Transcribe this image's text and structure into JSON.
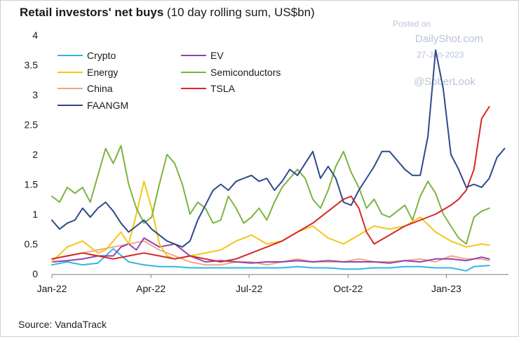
{
  "title_bold": "Retail investors' net buys",
  "title_rest": " (10 day rolling sum, US$bn)",
  "source": "Source: VandaTrack",
  "watermark": {
    "line1": "Posted on",
    "line2": "DailyShot.com",
    "line3": "27-Jan-2023",
    "line4": "@SoberLook"
  },
  "chart_data": {
    "type": "line",
    "title": "Retail investors' net buys (10 day rolling sum, US$bn)",
    "xlabel": "",
    "ylabel": "",
    "ylim": [
      0,
      4
    ],
    "yticks": [
      "0",
      "0.5",
      "1",
      "1.5",
      "2",
      "2.5",
      "3",
      "3.5",
      "4"
    ],
    "x_tick_labels": [
      "Jan-22",
      "Apr-22",
      "Jul-22",
      "Oct-22",
      "Jan-23"
    ],
    "x_unit": "weeks since Jan-22 (approx.)",
    "grid": false,
    "legend_position": "top-left",
    "series": [
      {
        "name": "Crypto",
        "color": "#33b5e5",
        "points": [
          [
            0,
            0.15
          ],
          [
            2,
            0.2
          ],
          [
            4,
            0.15
          ],
          [
            6,
            0.18
          ],
          [
            8,
            0.42
          ],
          [
            10,
            0.2
          ],
          [
            12,
            0.15
          ],
          [
            14,
            0.12
          ],
          [
            16,
            0.12
          ],
          [
            18,
            0.1
          ],
          [
            20,
            0.1
          ],
          [
            22,
            0.1
          ],
          [
            24,
            0.1
          ],
          [
            26,
            0.1
          ],
          [
            28,
            0.1
          ],
          [
            30,
            0.1
          ],
          [
            32,
            0.12
          ],
          [
            34,
            0.1
          ],
          [
            36,
            0.1
          ],
          [
            38,
            0.08
          ],
          [
            40,
            0.08
          ],
          [
            42,
            0.1
          ],
          [
            44,
            0.1
          ],
          [
            46,
            0.12
          ],
          [
            48,
            0.12
          ],
          [
            50,
            0.1
          ],
          [
            52,
            0.1
          ],
          [
            54,
            0.05
          ],
          [
            55,
            0.12
          ],
          [
            57,
            0.14
          ]
        ]
      },
      {
        "name": "EV",
        "color": "#8e44ad",
        "points": [
          [
            0,
            0.2
          ],
          [
            2,
            0.22
          ],
          [
            4,
            0.25
          ],
          [
            6,
            0.3
          ],
          [
            8,
            0.3
          ],
          [
            9,
            0.45
          ],
          [
            10,
            0.5
          ],
          [
            11,
            0.4
          ],
          [
            12,
            0.6
          ],
          [
            14,
            0.45
          ],
          [
            16,
            0.5
          ],
          [
            18,
            0.3
          ],
          [
            20,
            0.2
          ],
          [
            22,
            0.22
          ],
          [
            24,
            0.2
          ],
          [
            26,
            0.18
          ],
          [
            28,
            0.2
          ],
          [
            30,
            0.2
          ],
          [
            32,
            0.22
          ],
          [
            34,
            0.2
          ],
          [
            36,
            0.22
          ],
          [
            38,
            0.2
          ],
          [
            40,
            0.2
          ],
          [
            42,
            0.2
          ],
          [
            44,
            0.18
          ],
          [
            46,
            0.22
          ],
          [
            48,
            0.2
          ],
          [
            50,
            0.25
          ],
          [
            52,
            0.25
          ],
          [
            54,
            0.22
          ],
          [
            56,
            0.28
          ],
          [
            57,
            0.25
          ]
        ]
      },
      {
        "name": "Energy",
        "color": "#f5c518",
        "points": [
          [
            0,
            0.2
          ],
          [
            2,
            0.45
          ],
          [
            4,
            0.55
          ],
          [
            6,
            0.35
          ],
          [
            7,
            0.4
          ],
          [
            8,
            0.55
          ],
          [
            9,
            0.7
          ],
          [
            10,
            0.5
          ],
          [
            11,
            1.0
          ],
          [
            12,
            1.55
          ],
          [
            13,
            1.1
          ],
          [
            14,
            0.5
          ],
          [
            15,
            0.3
          ],
          [
            16,
            0.25
          ],
          [
            18,
            0.3
          ],
          [
            20,
            0.35
          ],
          [
            22,
            0.4
          ],
          [
            24,
            0.55
          ],
          [
            26,
            0.65
          ],
          [
            28,
            0.5
          ],
          [
            30,
            0.55
          ],
          [
            32,
            0.7
          ],
          [
            34,
            0.8
          ],
          [
            36,
            0.6
          ],
          [
            38,
            0.5
          ],
          [
            40,
            0.65
          ],
          [
            42,
            0.8
          ],
          [
            44,
            0.75
          ],
          [
            46,
            0.8
          ],
          [
            48,
            0.95
          ],
          [
            50,
            0.7
          ],
          [
            52,
            0.55
          ],
          [
            54,
            0.45
          ],
          [
            56,
            0.5
          ],
          [
            57,
            0.48
          ]
        ]
      },
      {
        "name": "Semiconductors",
        "color": "#7cb342",
        "points": [
          [
            0,
            1.3
          ],
          [
            1,
            1.2
          ],
          [
            2,
            1.45
          ],
          [
            3,
            1.35
          ],
          [
            4,
            1.45
          ],
          [
            5,
            1.2
          ],
          [
            6,
            1.65
          ],
          [
            7,
            2.1
          ],
          [
            8,
            1.85
          ],
          [
            9,
            2.15
          ],
          [
            10,
            1.5
          ],
          [
            11,
            1.1
          ],
          [
            12,
            0.85
          ],
          [
            13,
            0.95
          ],
          [
            14,
            1.5
          ],
          [
            15,
            2.0
          ],
          [
            16,
            1.85
          ],
          [
            17,
            1.5
          ],
          [
            18,
            1.0
          ],
          [
            19,
            1.2
          ],
          [
            20,
            1.1
          ],
          [
            21,
            0.85
          ],
          [
            22,
            0.9
          ],
          [
            23,
            1.3
          ],
          [
            24,
            1.1
          ],
          [
            25,
            0.85
          ],
          [
            26,
            0.95
          ],
          [
            27,
            1.1
          ],
          [
            28,
            0.9
          ],
          [
            29,
            1.2
          ],
          [
            30,
            1.45
          ],
          [
            31,
            1.6
          ],
          [
            32,
            1.75
          ],
          [
            33,
            1.6
          ],
          [
            34,
            1.25
          ],
          [
            35,
            1.1
          ],
          [
            36,
            1.4
          ],
          [
            37,
            1.8
          ],
          [
            38,
            2.05
          ],
          [
            39,
            1.7
          ],
          [
            40,
            1.45
          ],
          [
            41,
            1.1
          ],
          [
            42,
            1.25
          ],
          [
            43,
            1.0
          ],
          [
            44,
            0.95
          ],
          [
            45,
            1.05
          ],
          [
            46,
            1.15
          ],
          [
            47,
            0.9
          ],
          [
            48,
            1.3
          ],
          [
            49,
            1.55
          ],
          [
            50,
            1.35
          ],
          [
            51,
            1.0
          ],
          [
            52,
            0.8
          ],
          [
            53,
            0.6
          ],
          [
            54,
            0.5
          ],
          [
            55,
            0.95
          ],
          [
            56,
            1.05
          ],
          [
            57,
            1.1
          ]
        ]
      },
      {
        "name": "China",
        "color": "#f4a582",
        "points": [
          [
            0,
            0.25
          ],
          [
            2,
            0.3
          ],
          [
            4,
            0.35
          ],
          [
            6,
            0.4
          ],
          [
            8,
            0.45
          ],
          [
            10,
            0.5
          ],
          [
            12,
            0.55
          ],
          [
            14,
            0.4
          ],
          [
            16,
            0.3
          ],
          [
            18,
            0.2
          ],
          [
            20,
            0.15
          ],
          [
            22,
            0.15
          ],
          [
            24,
            0.2
          ],
          [
            26,
            0.2
          ],
          [
            28,
            0.15
          ],
          [
            30,
            0.2
          ],
          [
            32,
            0.25
          ],
          [
            34,
            0.2
          ],
          [
            36,
            0.2
          ],
          [
            38,
            0.2
          ],
          [
            40,
            0.25
          ],
          [
            42,
            0.2
          ],
          [
            44,
            0.2
          ],
          [
            46,
            0.22
          ],
          [
            48,
            0.25
          ],
          [
            50,
            0.2
          ],
          [
            52,
            0.3
          ],
          [
            54,
            0.25
          ],
          [
            56,
            0.25
          ],
          [
            57,
            0.22
          ]
        ]
      },
      {
        "name": "TSLA",
        "color": "#d62728",
        "points": [
          [
            0,
            0.25
          ],
          [
            2,
            0.3
          ],
          [
            4,
            0.35
          ],
          [
            6,
            0.3
          ],
          [
            8,
            0.25
          ],
          [
            10,
            0.3
          ],
          [
            12,
            0.35
          ],
          [
            14,
            0.3
          ],
          [
            16,
            0.25
          ],
          [
            18,
            0.3
          ],
          [
            20,
            0.25
          ],
          [
            22,
            0.2
          ],
          [
            24,
            0.25
          ],
          [
            26,
            0.35
          ],
          [
            28,
            0.45
          ],
          [
            30,
            0.55
          ],
          [
            32,
            0.7
          ],
          [
            34,
            0.85
          ],
          [
            36,
            1.05
          ],
          [
            38,
            1.25
          ],
          [
            39,
            1.3
          ],
          [
            40,
            1.1
          ],
          [
            41,
            0.7
          ],
          [
            42,
            0.5
          ],
          [
            44,
            0.65
          ],
          [
            46,
            0.8
          ],
          [
            48,
            0.9
          ],
          [
            50,
            1.0
          ],
          [
            52,
            1.15
          ],
          [
            53,
            1.25
          ],
          [
            54,
            1.4
          ],
          [
            55,
            1.75
          ],
          [
            56,
            2.6
          ],
          [
            57,
            2.8
          ]
        ]
      },
      {
        "name": "FAANGM",
        "color": "#2c4a8a",
        "points": [
          [
            0,
            0.9
          ],
          [
            1,
            0.75
          ],
          [
            2,
            0.85
          ],
          [
            3,
            0.9
          ],
          [
            4,
            1.1
          ],
          [
            5,
            0.95
          ],
          [
            6,
            1.1
          ],
          [
            7,
            1.2
          ],
          [
            8,
            1.05
          ],
          [
            9,
            0.85
          ],
          [
            10,
            0.7
          ],
          [
            11,
            0.8
          ],
          [
            12,
            0.9
          ],
          [
            13,
            0.75
          ],
          [
            14,
            0.65
          ],
          [
            15,
            0.55
          ],
          [
            16,
            0.5
          ],
          [
            17,
            0.45
          ],
          [
            18,
            0.55
          ],
          [
            19,
            0.9
          ],
          [
            20,
            1.15
          ],
          [
            21,
            1.4
          ],
          [
            22,
            1.5
          ],
          [
            23,
            1.4
          ],
          [
            24,
            1.55
          ],
          [
            25,
            1.6
          ],
          [
            26,
            1.65
          ],
          [
            27,
            1.55
          ],
          [
            28,
            1.6
          ],
          [
            29,
            1.4
          ],
          [
            30,
            1.55
          ],
          [
            31,
            1.75
          ],
          [
            32,
            1.65
          ],
          [
            33,
            1.85
          ],
          [
            34,
            2.05
          ],
          [
            35,
            1.6
          ],
          [
            36,
            1.8
          ],
          [
            37,
            1.6
          ],
          [
            38,
            1.2
          ],
          [
            39,
            1.15
          ],
          [
            40,
            1.4
          ],
          [
            41,
            1.6
          ],
          [
            42,
            1.8
          ],
          [
            43,
            2.05
          ],
          [
            44,
            2.05
          ],
          [
            45,
            1.9
          ],
          [
            46,
            1.75
          ],
          [
            47,
            1.65
          ],
          [
            48,
            1.65
          ],
          [
            49,
            2.3
          ],
          [
            50,
            3.75
          ],
          [
            51,
            3.1
          ],
          [
            52,
            2.0
          ],
          [
            53,
            1.75
          ],
          [
            54,
            1.45
          ],
          [
            55,
            1.5
          ],
          [
            56,
            1.45
          ],
          [
            57,
            1.6
          ],
          [
            58,
            1.95
          ],
          [
            59,
            2.1
          ]
        ]
      }
    ]
  }
}
